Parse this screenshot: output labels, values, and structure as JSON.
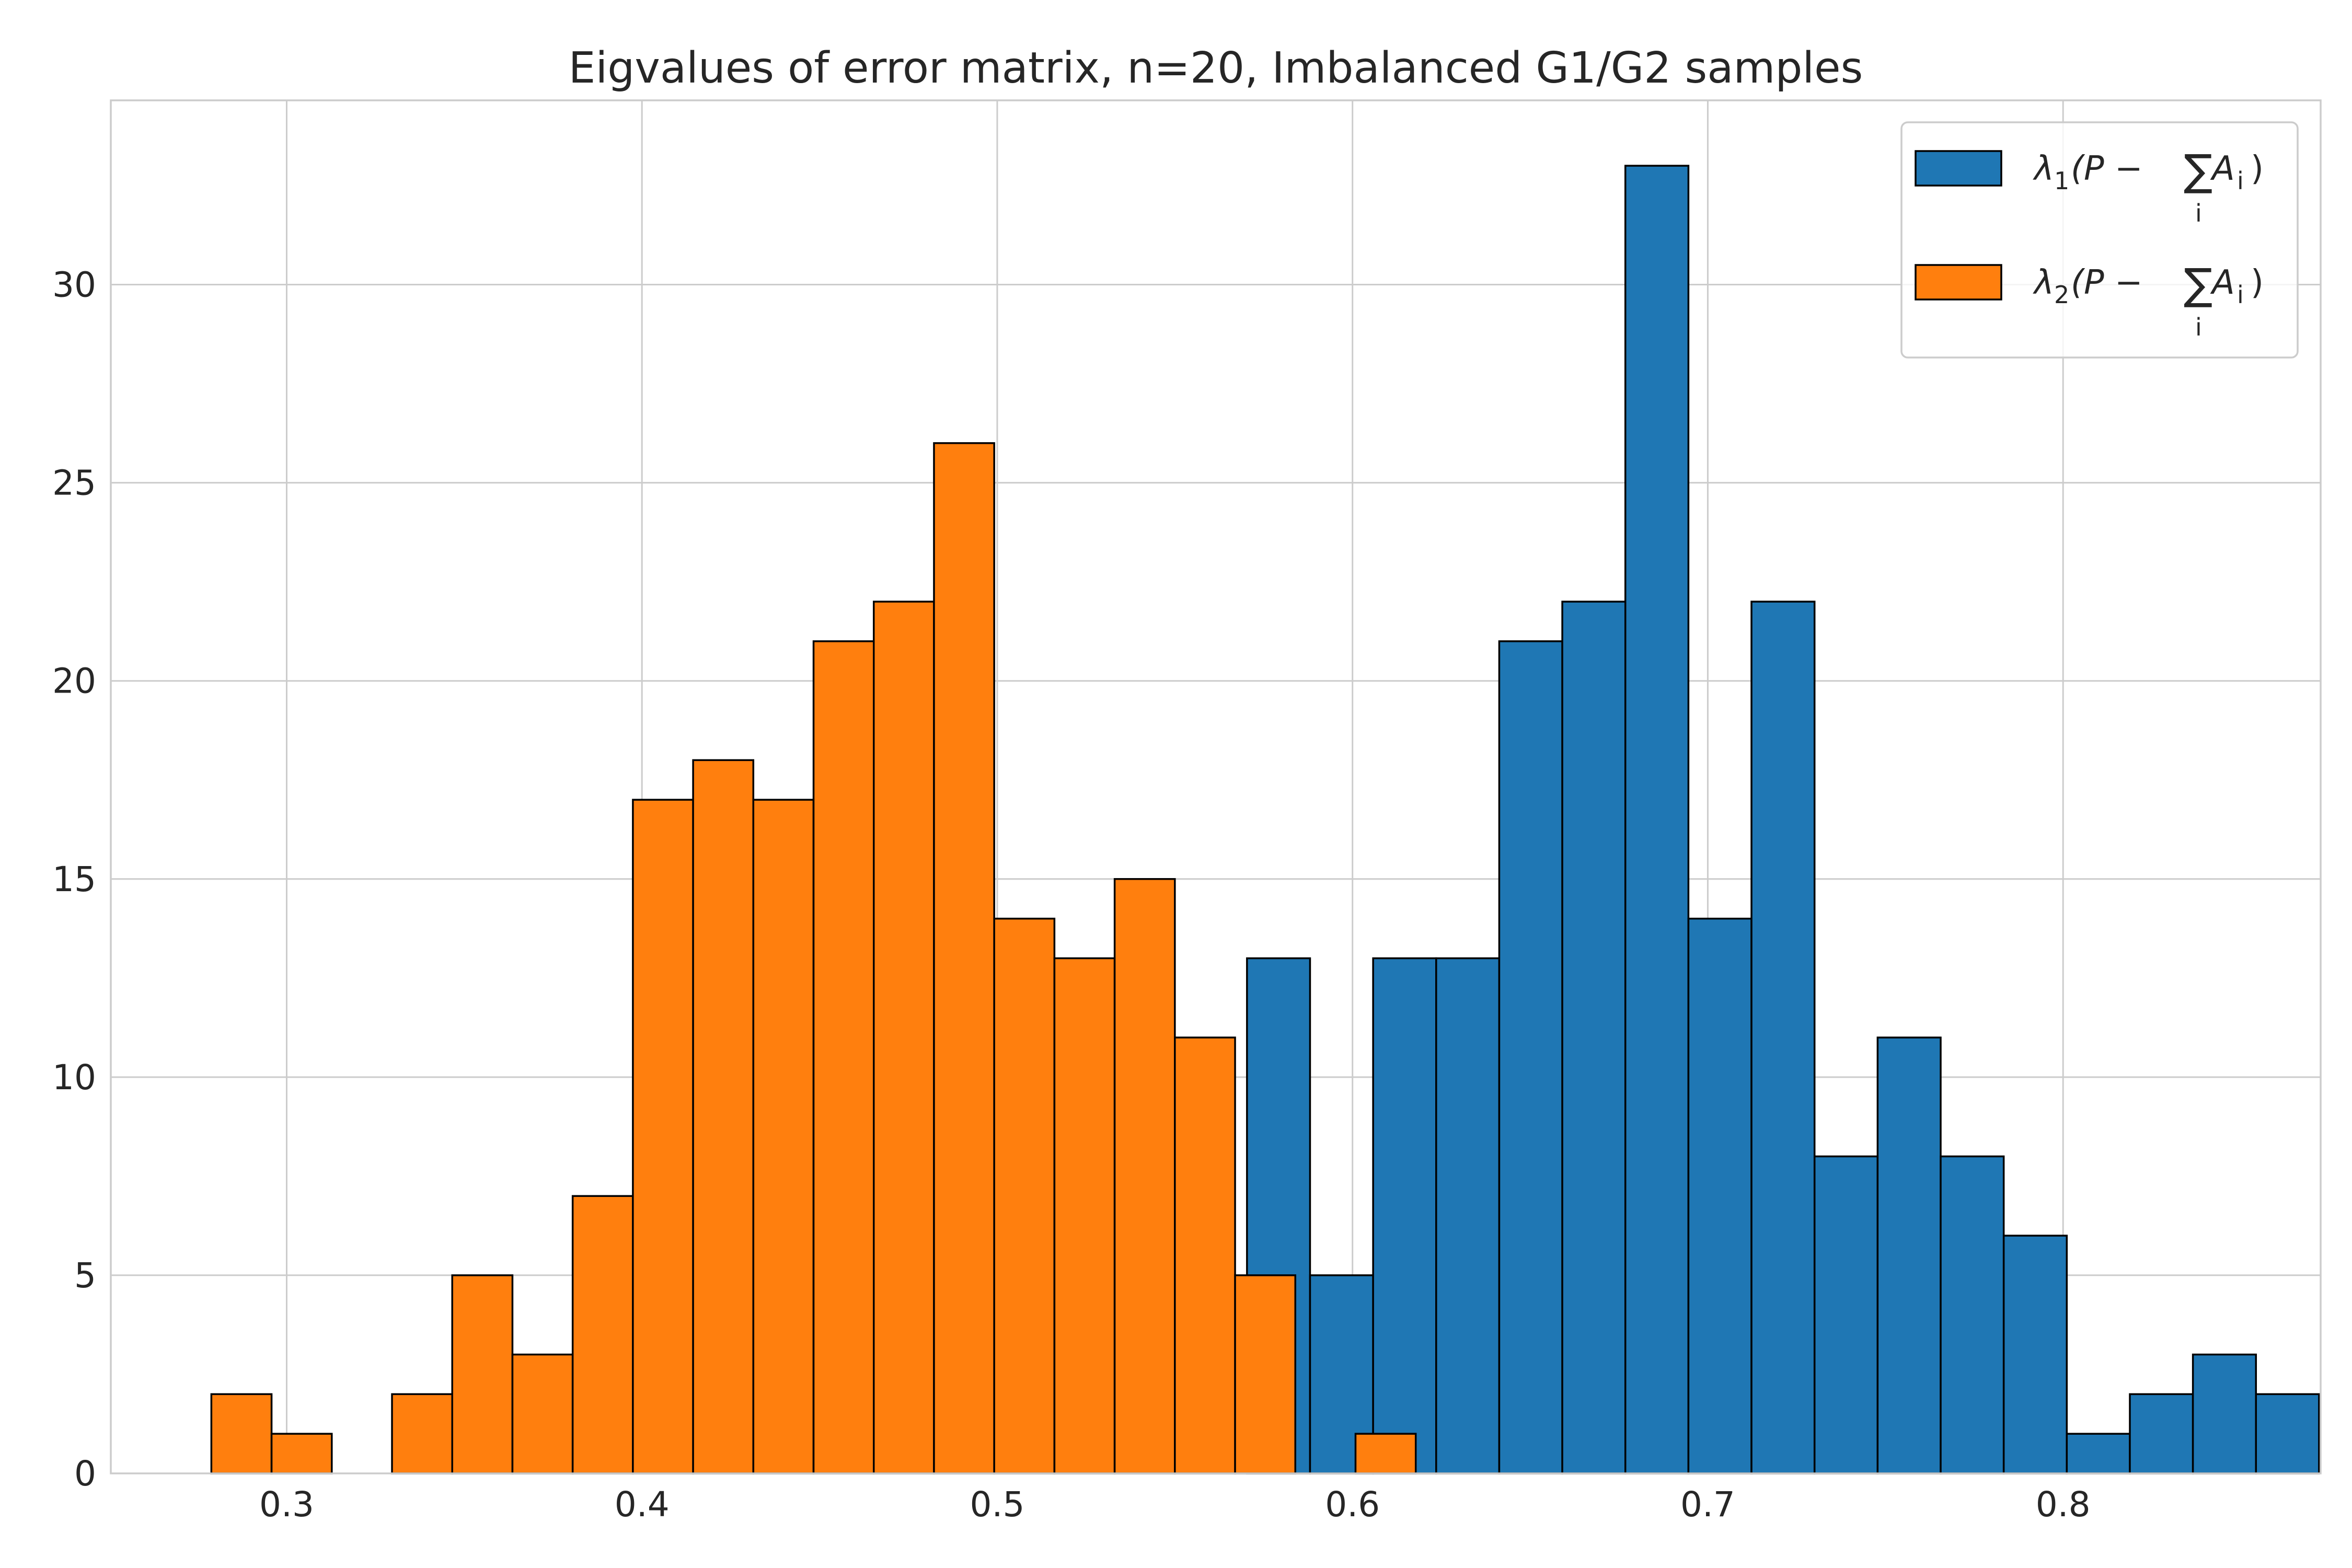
{
  "chart_data": {
    "type": "bar",
    "title": "Eigvalues of error matrix, n=20, Imbalanced G1/G2 samples",
    "xlabel": "",
    "ylabel": "",
    "xlim": [
      0.2505,
      0.8725
    ],
    "ylim": [
      0,
      34.65
    ],
    "xticks": [
      0.3,
      0.4,
      0.5,
      0.6,
      0.7,
      0.8
    ],
    "xtick_labels": [
      "0.3",
      "0.4",
      "0.5",
      "0.6",
      "0.7",
      "0.8"
    ],
    "yticks": [
      0,
      5,
      10,
      15,
      20,
      25,
      30
    ],
    "ytick_labels": [
      "0",
      "5",
      "10",
      "15",
      "20",
      "25",
      "30"
    ],
    "grid": true,
    "legend_position": "upper right",
    "series": [
      {
        "name": "λ1(P − ∑i Ai)",
        "legend_symbol": "λ",
        "legend_sub": "1",
        "legend_expr": "(P − ",
        "legend_sum": "∑",
        "legend_sum_index": "i",
        "legend_var": "A",
        "legend_var_sub": "i",
        "legend_close": ")",
        "color": "#1f77b4",
        "bin_start": 0.5703,
        "bin_width": 0.01775,
        "values": [
          13,
          5,
          13,
          13,
          21,
          22,
          33,
          14,
          22,
          8,
          11,
          8,
          6,
          1,
          2,
          3,
          2
        ]
      },
      {
        "name": "λ2(P − ∑i Ai)",
        "legend_symbol": "λ",
        "legend_sub": "2",
        "legend_expr": "(P − ",
        "legend_sum": "∑",
        "legend_sum_index": "i",
        "legend_var": "A",
        "legend_var_sub": "i",
        "legend_close": ")",
        "color": "#ff7f0e",
        "bin_start": 0.2788,
        "bin_width": 0.01695,
        "values": [
          2,
          1,
          0,
          2,
          5,
          3,
          7,
          17,
          18,
          17,
          21,
          22,
          26,
          14,
          13,
          15,
          11,
          5,
          0,
          1
        ]
      }
    ]
  }
}
